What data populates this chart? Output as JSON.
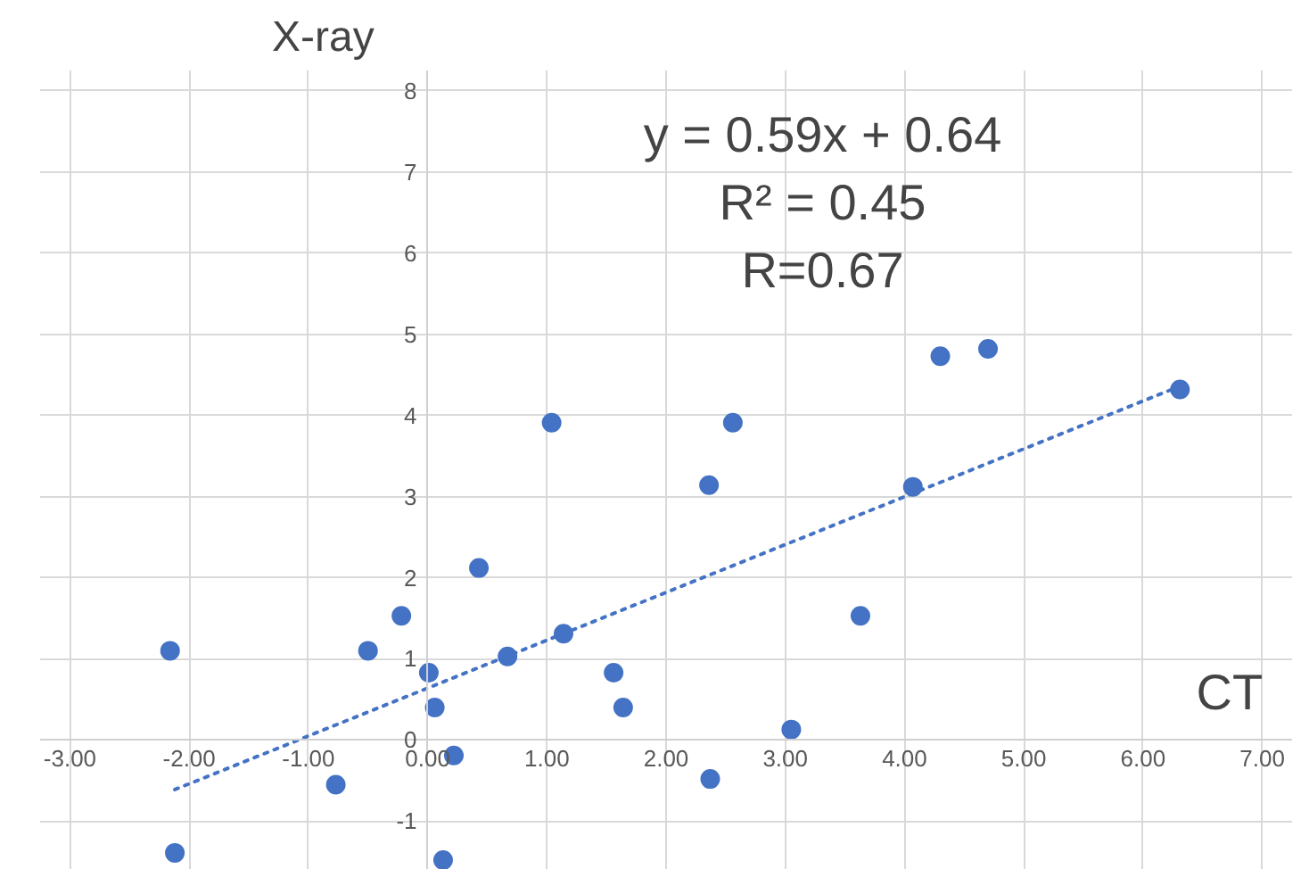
{
  "chart_data": {
    "type": "scatter",
    "xlabel": "CT",
    "ylabel": "X-ray",
    "annotations": [
      "y = 0.59x + 0.64",
      "R² = 0.45",
      "R=0.67"
    ],
    "x": [
      -2.16,
      -2.12,
      -0.77,
      -0.5,
      -0.22,
      0.01,
      0.06,
      0.22,
      0.13,
      0.43,
      0.67,
      1.04,
      1.14,
      1.56,
      1.64,
      2.36,
      2.56,
      2.37,
      3.05,
      3.63,
      4.07,
      4.3,
      4.7,
      6.31
    ],
    "series": [
      {
        "color": "#4472c4",
        "values": [
          1.1,
          -1.39,
          -0.55,
          1.1,
          1.53,
          0.83,
          0.4,
          -0.19,
          -1.48,
          2.12,
          1.03,
          3.91,
          1.31,
          0.83,
          0.4,
          3.14,
          3.91,
          -0.48,
          0.13,
          1.53,
          3.12,
          4.73,
          4.82,
          4.32
        ]
      },
      {
        "type": "line",
        "color": "#4472c4",
        "line_style": "dotted",
        "marker": "none",
        "x": [
          -2.12,
          6.31
        ],
        "values": [
          -0.61,
          4.36
        ]
      }
    ],
    "marker": "circle",
    "grid": true,
    "xlim": [
      -3.25,
      7.25
    ],
    "ylim": [
      -1.6,
      8.25
    ],
    "xticks": [
      {
        "value": -3,
        "label": "-3.00"
      },
      {
        "value": -2,
        "label": "-2.00"
      },
      {
        "value": -1,
        "label": "-1.00"
      },
      {
        "value": 0,
        "label": "0.00"
      },
      {
        "value": 1,
        "label": "1.00"
      },
      {
        "value": 2,
        "label": "2.00"
      },
      {
        "value": 3,
        "label": "3.00"
      },
      {
        "value": 4,
        "label": "4.00"
      },
      {
        "value": 5,
        "label": "5.00"
      },
      {
        "value": 6,
        "label": "6.00"
      },
      {
        "value": 7,
        "label": "7.00"
      }
    ],
    "yticks": [
      -1,
      0,
      1,
      2,
      3,
      4,
      5,
      6,
      7,
      8
    ]
  }
}
